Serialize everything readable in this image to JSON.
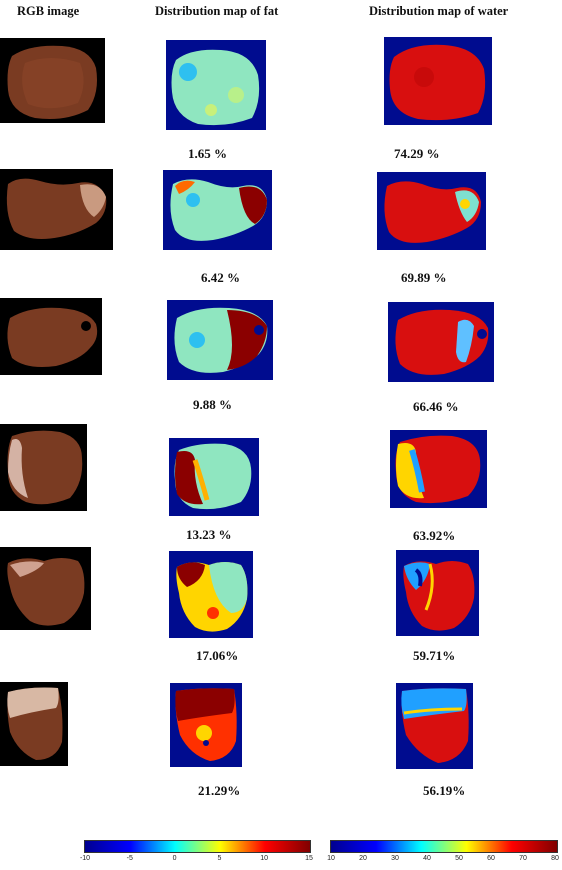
{
  "headers": {
    "rgb": "RGB image",
    "fat": "Distribution map of fat",
    "water": "Distribution map of water"
  },
  "rows": [
    {
      "fat_pct": "1.65 %",
      "water_pct": "74.29 %"
    },
    {
      "fat_pct": "6.42 %",
      "water_pct": "69.89 %"
    },
    {
      "fat_pct": "9.88 %",
      "water_pct": "66.46 %"
    },
    {
      "fat_pct": "13.23 %",
      "water_pct": "63.92%"
    },
    {
      "fat_pct": "17.06%",
      "water_pct": "59.71%"
    },
    {
      "fat_pct": "21.29%",
      "water_pct": "56.19%"
    }
  ],
  "colorbars": {
    "fat": {
      "ticks": [
        "-10",
        "-5",
        "0",
        "5",
        "10",
        "15"
      ],
      "min": -10,
      "max": 15
    },
    "water": {
      "ticks": [
        "10",
        "20",
        "30",
        "40",
        "50",
        "60",
        "70",
        "80"
      ],
      "min": 10,
      "max": 80
    }
  },
  "colors": {
    "background": "#000c8f",
    "meat_base": "#7a3b22",
    "fat_base": "#8fe6c0",
    "water_base": "#d80f0f",
    "dark_red": "#8b0000"
  }
}
